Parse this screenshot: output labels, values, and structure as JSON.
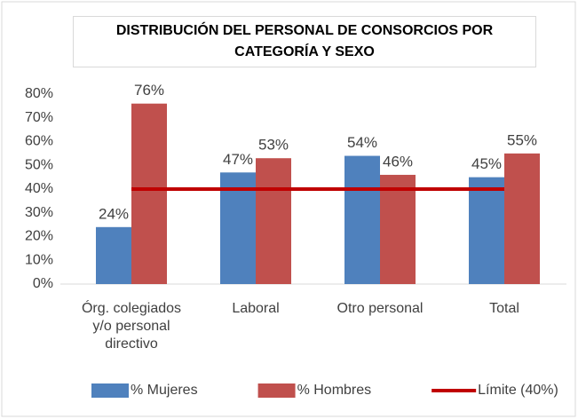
{
  "chart_data": {
    "type": "bar",
    "title": "DISTRIBUCIÓN DEL PERSONAL DE CONSORCIOS POR CATEGORÍA Y SEXO",
    "categories": [
      "Órg. colegiados y/o personal directivo",
      "Laboral",
      "Otro personal",
      "Total"
    ],
    "series": [
      {
        "name": "% Mujeres",
        "color": "#4f81bd",
        "values": [
          24,
          47,
          54,
          45
        ],
        "value_labels": [
          "24%",
          "47%",
          "54%",
          "45%"
        ]
      },
      {
        "name": "% Hombres",
        "color": "#c0504d",
        "values": [
          76,
          53,
          46,
          55
        ],
        "value_labels": [
          "76%",
          "53%",
          "46%",
          "55%"
        ]
      },
      {
        "name": "Límite (40%)",
        "color": "#c00000",
        "type": "line",
        "values": [
          40,
          40,
          40,
          40
        ]
      }
    ],
    "ylim": [
      0,
      80
    ],
    "yticks": [
      {
        "value": 0,
        "label": "0%"
      },
      {
        "value": 10,
        "label": "10%"
      },
      {
        "value": 20,
        "label": "20%"
      },
      {
        "value": 30,
        "label": "30%"
      },
      {
        "value": 40,
        "label": "40%"
      },
      {
        "value": 50,
        "label": "50%"
      },
      {
        "value": 60,
        "label": "60%"
      },
      {
        "value": 70,
        "label": "70%"
      },
      {
        "value": 80,
        "label": "80%"
      }
    ],
    "legend": "bottom"
  }
}
